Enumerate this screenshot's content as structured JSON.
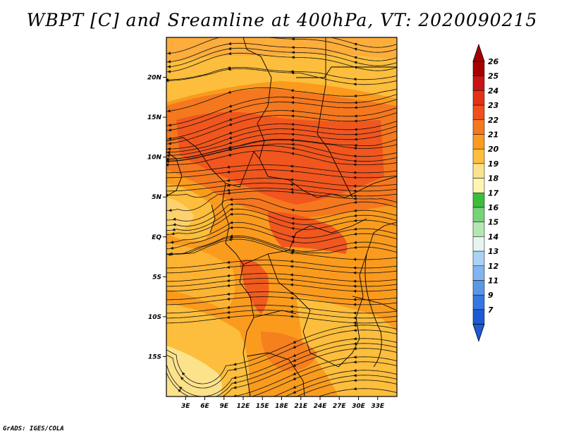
{
  "title": "WBPT [C] and Sreamline at 400hPa, VT: 2020090215",
  "footer": "GrADS: IGES/COLA",
  "map": {
    "lon_ticks": [
      "3E",
      "6E",
      "9E",
      "12E",
      "15E",
      "18E",
      "21E",
      "24E",
      "27E",
      "30E",
      "33E"
    ],
    "lat_ticks": [
      "20N",
      "15N",
      "10N",
      "5N",
      "EQ",
      "5S",
      "10S",
      "15S"
    ],
    "lon_values": [
      3,
      6,
      9,
      12,
      15,
      18,
      21,
      24,
      27,
      30,
      33
    ],
    "lat_values": [
      20,
      15,
      10,
      5,
      0,
      -5,
      -10,
      -15
    ],
    "lon_range": [
      0,
      36
    ],
    "lat_range": [
      -20,
      25
    ]
  },
  "colorbar": {
    "labels": [
      "26",
      "25",
      "24",
      "23",
      "22",
      "21",
      "20",
      "19",
      "18",
      "17",
      "16",
      "15",
      "14",
      "13",
      "12",
      "11",
      "9",
      "7"
    ],
    "colors": [
      "#a50000",
      "#c81414",
      "#e63214",
      "#f0501e",
      "#f5781e",
      "#fa9b1e",
      "#fcbe3c",
      "#fde28c",
      "#fff5b4",
      "#3cbe3c",
      "#78d278",
      "#b4e6b4",
      "#e6f5f0",
      "#aad2f5",
      "#82b4f0",
      "#5a96e6",
      "#3278e1",
      "#1e5ad2"
    ],
    "cap_top_color": "#a50000",
    "cap_bottom_color": "#1e5ad2"
  }
}
